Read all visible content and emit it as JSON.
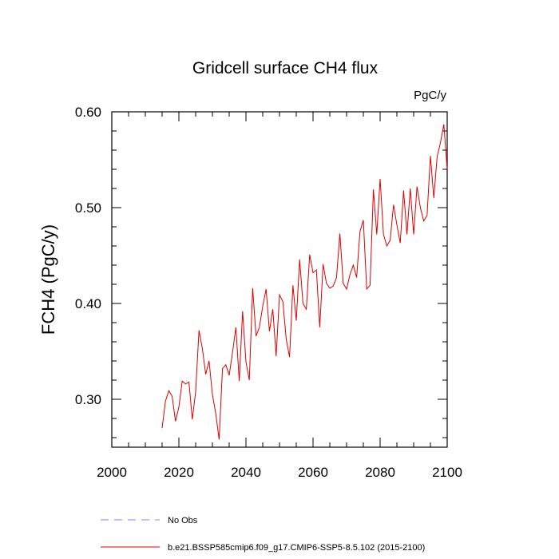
{
  "chart_data": {
    "type": "line",
    "title": "Gridcell surface CH4 flux",
    "units": "PgC/y",
    "ylabel": "FCH4  (PgC/y)",
    "xlabel": "",
    "xlim": [
      2000,
      2100
    ],
    "ylim": [
      0.25,
      0.6
    ],
    "xticks": [
      2000,
      2020,
      2040,
      2060,
      2080,
      2100
    ],
    "xtick_labels": [
      "2000",
      "2020",
      "2040",
      "2060",
      "2080",
      "2100"
    ],
    "yticks": [
      0.3,
      0.4,
      0.5,
      0.6
    ],
    "ytick_labels": [
      "0.30",
      "0.40",
      "0.50",
      "0.60"
    ],
    "grid": false,
    "legend_position": "bottom",
    "legend": [
      {
        "name": "No Obs",
        "color": "#8a8aff",
        "style": "dashed"
      },
      {
        "name": "b.e21.BSSP585cmip6.f09_g17.CMIP6-SSP5-8.5.102 (2015-2100)",
        "color": "#e00000",
        "style": "solid"
      }
    ],
    "series": [
      {
        "name": "b.e21.BSSP585cmip6.f09_g17.CMIP6-SSP5-8.5.102 (2015-2100)",
        "color": "#e00000",
        "x": [
          2015,
          2016,
          2017,
          2018,
          2019,
          2020,
          2021,
          2022,
          2023,
          2024,
          2025,
          2026,
          2027,
          2028,
          2029,
          2030,
          2031,
          2032,
          2033,
          2034,
          2035,
          2036,
          2037,
          2038,
          2039,
          2040,
          2041,
          2042,
          2043,
          2044,
          2045,
          2046,
          2047,
          2048,
          2049,
          2050,
          2051,
          2052,
          2053,
          2054,
          2055,
          2056,
          2057,
          2058,
          2059,
          2060,
          2061,
          2062,
          2063,
          2064,
          2065,
          2066,
          2067,
          2068,
          2069,
          2070,
          2071,
          2072,
          2073,
          2074,
          2075,
          2076,
          2077,
          2078,
          2079,
          2080,
          2081,
          2082,
          2083,
          2084,
          2085,
          2086,
          2087,
          2088,
          2089,
          2090,
          2091,
          2092,
          2093,
          2094,
          2095,
          2096,
          2097,
          2098,
          2099,
          2100
        ],
        "y": [
          0.27,
          0.298,
          0.309,
          0.303,
          0.277,
          0.292,
          0.319,
          0.316,
          0.318,
          0.279,
          0.308,
          0.372,
          0.353,
          0.326,
          0.34,
          0.305,
          0.285,
          0.258,
          0.332,
          0.336,
          0.325,
          0.349,
          0.375,
          0.319,
          0.392,
          0.339,
          0.32,
          0.416,
          0.366,
          0.375,
          0.397,
          0.415,
          0.371,
          0.394,
          0.345,
          0.409,
          0.402,
          0.363,
          0.344,
          0.419,
          0.382,
          0.446,
          0.4,
          0.394,
          0.451,
          0.432,
          0.435,
          0.375,
          0.441,
          0.421,
          0.416,
          0.418,
          0.427,
          0.473,
          0.421,
          0.415,
          0.43,
          0.44,
          0.427,
          0.475,
          0.487,
          0.415,
          0.419,
          0.519,
          0.472,
          0.53,
          0.472,
          0.46,
          0.466,
          0.503,
          0.482,
          0.463,
          0.518,
          0.472,
          0.52,
          0.472,
          0.522,
          0.5,
          0.486,
          0.492,
          0.554,
          0.51,
          0.553,
          0.568,
          0.587,
          0.54
        ]
      }
    ]
  }
}
